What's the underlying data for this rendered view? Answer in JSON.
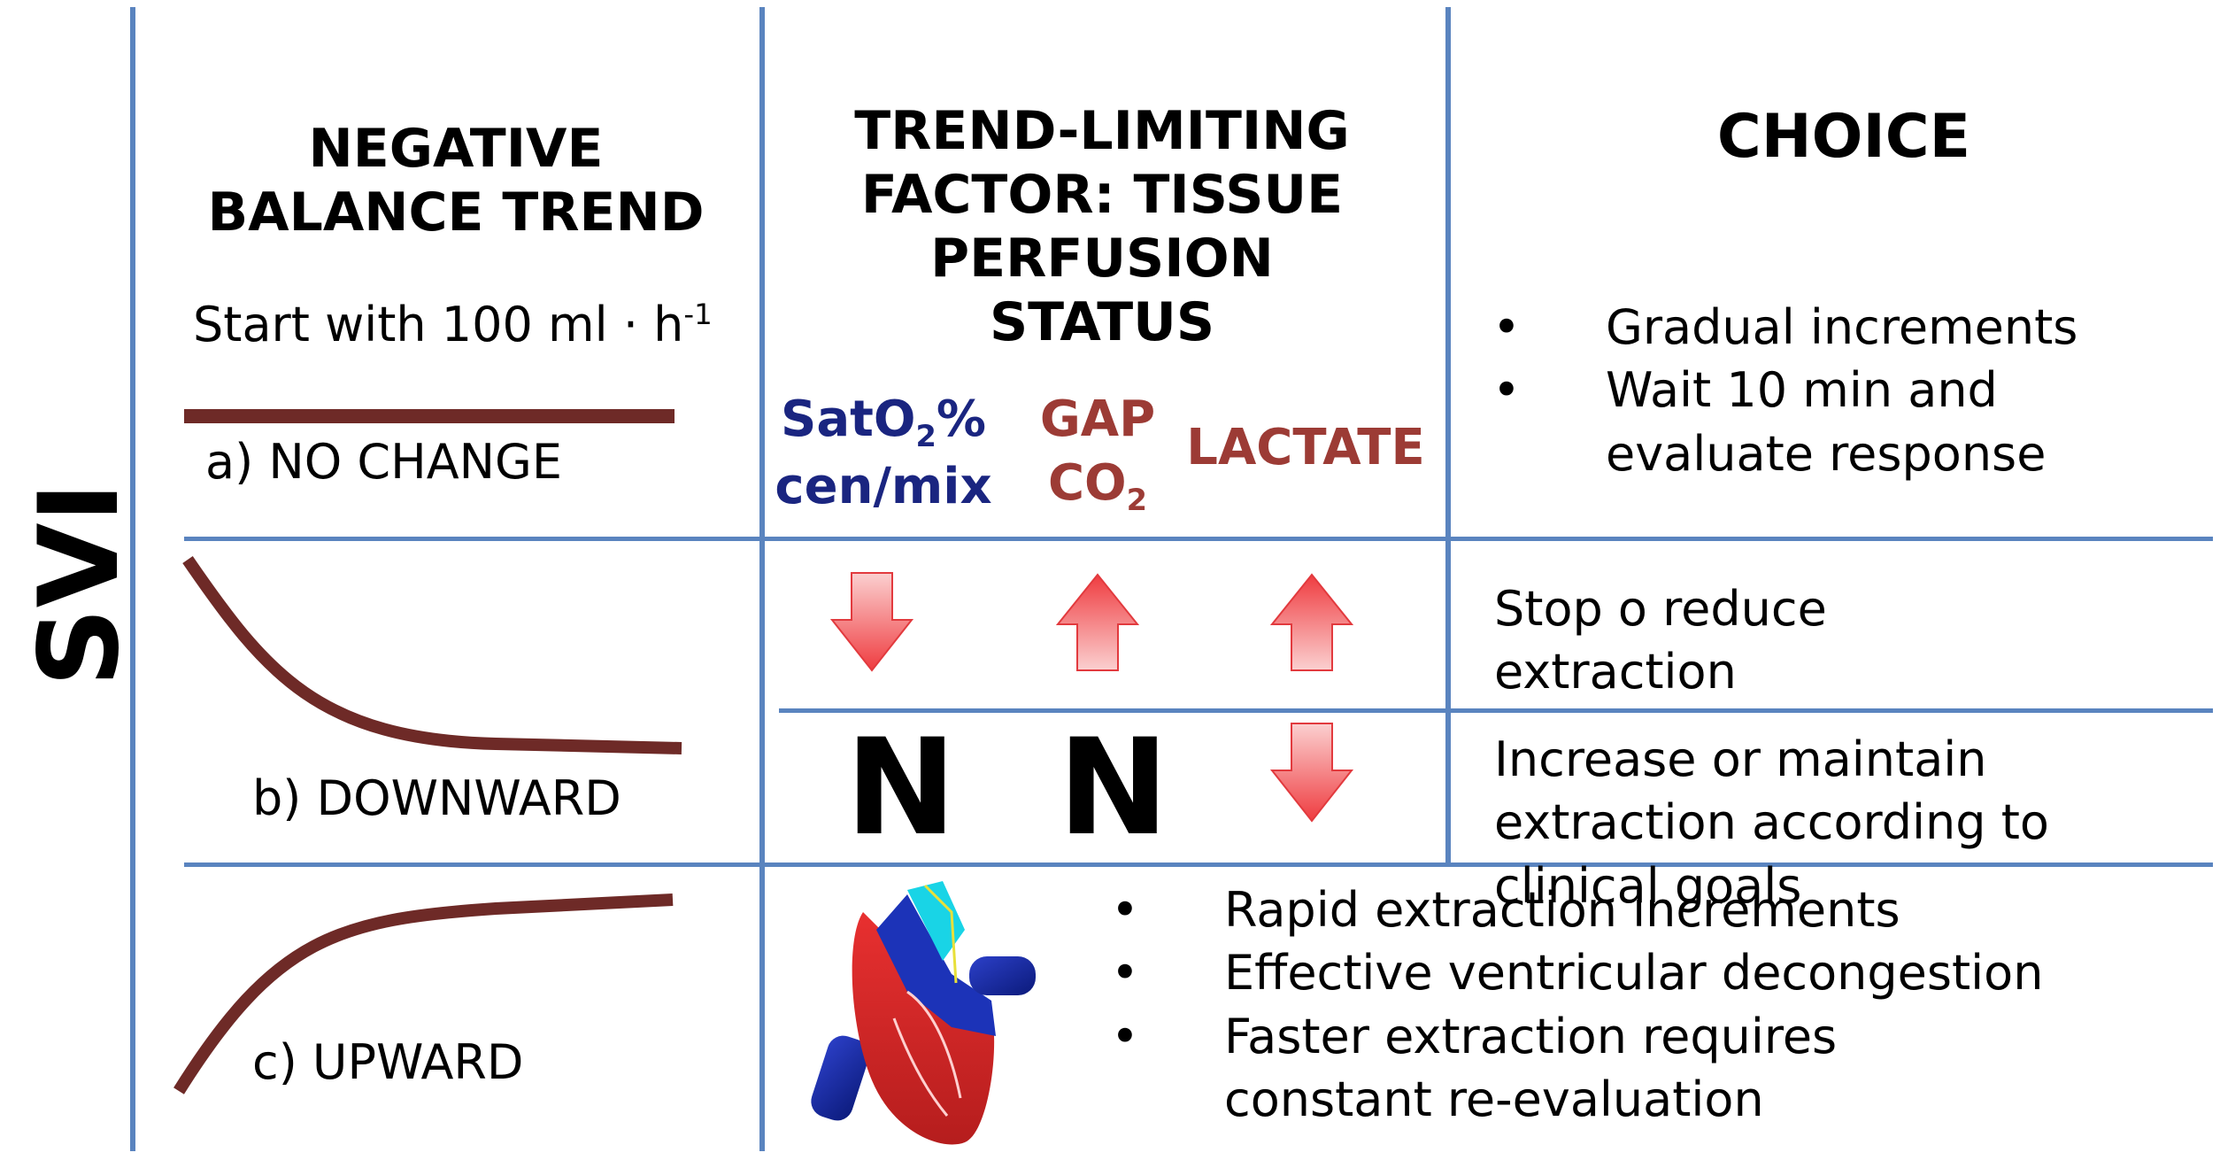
{
  "axis_label": "SVI",
  "headers": {
    "col1": "NEGATIVE BALANCE TREND",
    "col2": "TREND-LIMITING FACTOR: TISSUE PERFUSION STATUS",
    "col3": "CHOICE"
  },
  "start_note": {
    "text": "Start with 100 ml · h",
    "superscript": "-1"
  },
  "factors": {
    "sato2": {
      "line1_a": "SatO",
      "line1_sub": "2",
      "line1_b": "%",
      "line2": "cen/mix",
      "color": "#1a2580"
    },
    "gap_co2": {
      "line1": "GAP",
      "line2_a": "CO",
      "line2_sub": "2",
      "color": "#9c3b35"
    },
    "lactate": {
      "label": "LACTATE",
      "color": "#9c3b35"
    }
  },
  "trends": {
    "no_change": "a) NO CHANGE",
    "downward": "b) DOWNWARD",
    "upward": "c) UPWARD"
  },
  "choices": {
    "no_change": [
      "Gradual increments",
      "Wait 10 min and evaluate response"
    ],
    "downward_abnormal": "Stop o reduce extraction",
    "downward_normal": "Increase or maintain extraction according to clinical goals",
    "upward": [
      "Rapid extraction increments",
      "Effective ventricular decongestion",
      "Faster extraction requires constant re-evaluation"
    ]
  },
  "indicators": {
    "downward_abnormal": {
      "sato2": "arrow-down",
      "gap_co2": "arrow-up",
      "lactate": "arrow-up"
    },
    "downward_normal": {
      "sato2": "N",
      "gap_co2": "N",
      "lactate": "arrow-down"
    }
  },
  "colors": {
    "grid": "#5a84bf",
    "trend_line": "#6e2a27",
    "arrow": "#f0474a"
  }
}
